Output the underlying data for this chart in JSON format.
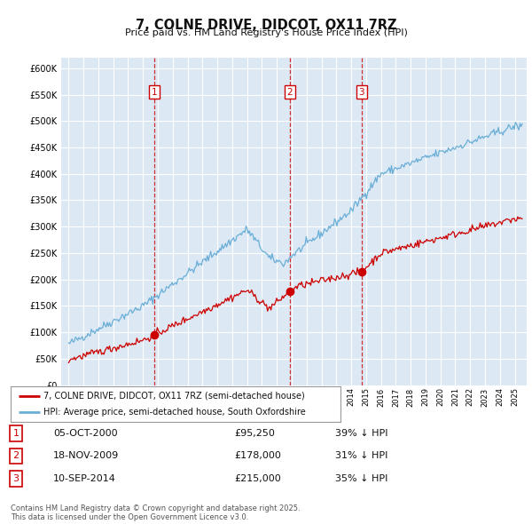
{
  "title": "7, COLNE DRIVE, DIDCOT, OX11 7RZ",
  "subtitle": "Price paid vs. HM Land Registry's House Price Index (HPI)",
  "background_color": "#ffffff",
  "plot_bg_color": "#dce9f5",
  "grid_color": "#ffffff",
  "hpi_color": "#6aaed6",
  "price_color": "#cc0000",
  "transactions": [
    {
      "label": "1",
      "date_str": "05-OCT-2000",
      "date_num": 2000.77,
      "price": 95250,
      "pct": "39% ↓ HPI"
    },
    {
      "label": "2",
      "date_str": "18-NOV-2009",
      "date_num": 2009.88,
      "price": 178000,
      "pct": "31% ↓ HPI"
    },
    {
      "label": "3",
      "date_str": "10-SEP-2014",
      "date_num": 2014.69,
      "price": 215000,
      "pct": "35% ↓ HPI"
    }
  ],
  "legend_entry1": "7, COLNE DRIVE, DIDCOT, OX11 7RZ (semi-detached house)",
  "legend_entry2": "HPI: Average price, semi-detached house, South Oxfordshire",
  "footer": "Contains HM Land Registry data © Crown copyright and database right 2025.\nThis data is licensed under the Open Government Licence v3.0.",
  "xmin": 1994.5,
  "xmax": 2025.8,
  "ymin": 0,
  "ymax": 620000,
  "yticks": [
    0,
    50000,
    100000,
    150000,
    200000,
    250000,
    300000,
    350000,
    400000,
    450000,
    500000,
    550000,
    600000
  ]
}
